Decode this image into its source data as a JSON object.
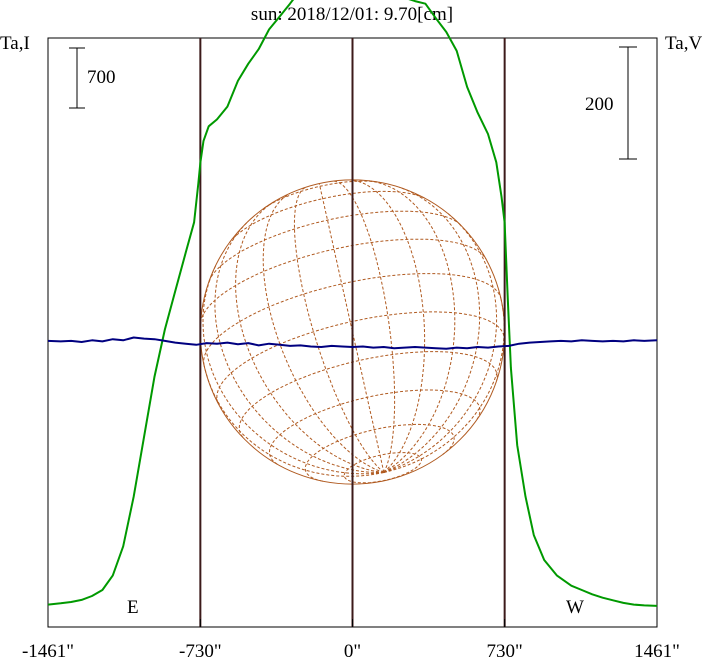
{
  "chart_data": {
    "type": "line",
    "title": "sun: 2018/12/01: 9.70[cm]",
    "left_axis_label": "Ta,I",
    "right_axis_label": "Ta,V",
    "scale_left_label": "700",
    "scale_right_label": "200",
    "x_tick_labels": [
      "-1461\"",
      "-730\"",
      "0\"",
      "730\"",
      "1461\""
    ],
    "x_tick_values": [
      -1461,
      -730,
      0,
      730,
      1461
    ],
    "xlim": [
      -1461,
      1461
    ],
    "limb_labels": {
      "east": "E",
      "west": "W"
    },
    "limb_positions": [
      -730,
      730
    ],
    "solar_radius": 730,
    "colors": {
      "intensity": "#009900",
      "polarization": "#000080",
      "grid": "#b05a20",
      "limb": "#3c1a1a",
      "title": "#000080"
    },
    "series": [
      {
        "key": "intensity",
        "name": "Ta,I",
        "x": [
          -1461,
          -1400,
          -1350,
          -1300,
          -1250,
          -1200,
          -1150,
          -1100,
          -1050,
          -1000,
          -950,
          -900,
          -850,
          -800,
          -760,
          -740,
          -730,
          -715,
          -690,
          -650,
          -600,
          -550,
          -500,
          -450,
          -400,
          -350,
          -300,
          -250,
          -200,
          -150,
          -100,
          -50,
          0,
          50,
          100,
          150,
          200,
          250,
          300,
          350,
          400,
          450,
          500,
          550,
          600,
          650,
          690,
          715,
          730,
          745,
          760,
          790,
          830,
          870,
          920,
          980,
          1050,
          1100,
          1150,
          1200,
          1250,
          1300,
          1350,
          1400,
          1461
        ],
        "values": [
          40,
          55,
          70,
          95,
          140,
          210,
          380,
          720,
          1300,
          2000,
          2700,
          3250,
          3700,
          4150,
          4500,
          4950,
          5200,
          5450,
          5620,
          5700,
          5850,
          6150,
          6350,
          6520,
          6750,
          6900,
          7050,
          7210,
          7280,
          7220,
          7250,
          7300,
          7380,
          7250,
          7200,
          7150,
          7180,
          7120,
          7080,
          7050,
          6880,
          6720,
          6500,
          6080,
          5780,
          5530,
          5200,
          4800,
          4500,
          3600,
          2800,
          1900,
          1300,
          850,
          560,
          380,
          260,
          210,
          160,
          120,
          90,
          60,
          40,
          30,
          25
        ]
      },
      {
        "key": "polarization",
        "name": "Ta,V",
        "x": [
          -1461,
          -1400,
          -1350,
          -1300,
          -1250,
          -1200,
          -1150,
          -1100,
          -1050,
          -1000,
          -950,
          -900,
          -850,
          -800,
          -750,
          -700,
          -650,
          -600,
          -550,
          -500,
          -450,
          -400,
          -350,
          -300,
          -250,
          -200,
          -150,
          -100,
          -50,
          0,
          50,
          100,
          150,
          200,
          250,
          300,
          350,
          400,
          450,
          500,
          550,
          600,
          650,
          700,
          750,
          800,
          850,
          900,
          950,
          1000,
          1050,
          1100,
          1150,
          1200,
          1250,
          1300,
          1350,
          1400,
          1461
        ],
        "values": [
          2,
          1,
          2,
          0,
          3,
          1,
          5,
          3,
          8,
          6,
          5,
          2,
          -1,
          -3,
          -5,
          -2,
          -3,
          -1,
          -4,
          -2,
          -6,
          -3,
          -5,
          -7,
          -6,
          -8,
          -9,
          -7,
          -8,
          -9,
          -8,
          -10,
          -9,
          -11,
          -10,
          -9,
          -10,
          -11,
          -12,
          -10,
          -11,
          -9,
          -10,
          -8,
          -7,
          -3,
          -1,
          0,
          1,
          2,
          1,
          3,
          2,
          1,
          2,
          1,
          3,
          2,
          3
        ]
      }
    ]
  }
}
